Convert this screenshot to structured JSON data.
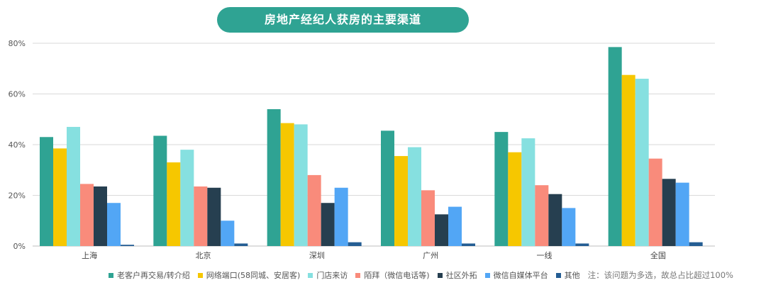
{
  "title": "房地产经纪人获房的主要渠道",
  "note": "注：该问题为多选，故总占比超过100%",
  "chart_data": {
    "type": "bar",
    "categories": [
      "上海",
      "北京",
      "深圳",
      "广州",
      "一线",
      "全国"
    ],
    "ylim": [
      0,
      80
    ],
    "yticks": [
      0,
      20,
      40,
      60,
      80
    ],
    "ytick_labels": [
      "0%",
      "20%",
      "40%",
      "60%",
      "80%"
    ],
    "grid": true,
    "legend_position": "bottom",
    "series": [
      {
        "name": "老客户再交易/转介绍",
        "color": "#2fa393",
        "values": [
          43,
          43.5,
          54,
          45.5,
          45,
          78.5
        ]
      },
      {
        "name": "网络端口(58同城、安居客)",
        "color": "#f6c700",
        "values": [
          38.5,
          33,
          48.5,
          35.5,
          37,
          67.5
        ]
      },
      {
        "name": "门店来访",
        "color": "#86e0e0",
        "values": [
          47,
          38,
          48,
          39,
          42.5,
          66
        ]
      },
      {
        "name": "陌拜（微信电话等)",
        "color": "#f98b7b",
        "values": [
          24.5,
          23.5,
          28,
          22,
          24,
          34.5
        ]
      },
      {
        "name": "社区外拓",
        "color": "#263f50",
        "values": [
          23.5,
          23,
          17,
          12.5,
          20.5,
          26.5
        ]
      },
      {
        "name": "微信自媒体平台",
        "color": "#52a6f5",
        "values": [
          17,
          10,
          23,
          15.5,
          15,
          25
        ]
      },
      {
        "name": "其他",
        "color": "#245d93",
        "values": [
          0.5,
          1,
          1.5,
          1,
          1,
          1.5
        ]
      }
    ]
  }
}
